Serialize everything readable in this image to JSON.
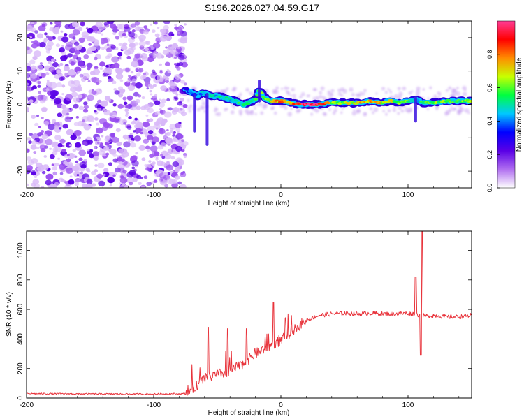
{
  "title": "S196.2026.027.04.59.G17",
  "colors": {
    "snr_line": "#e8333b",
    "frame": "#000000",
    "background": "#ffffff"
  },
  "chart_data": [
    {
      "type": "heatmap",
      "name": "spectrogram",
      "xlabel": "Height of straight line (km)",
      "ylabel": "Frequency (Hz)",
      "xlim": [
        -200,
        150
      ],
      "ylim": [
        -25,
        25
      ],
      "xticks": [
        -200,
        -100,
        0,
        100
      ],
      "xtick_labels": [
        "-200",
        "-100",
        "0",
        "100"
      ],
      "yticks": [
        -20,
        -10,
        0,
        10,
        20
      ],
      "ytick_labels": [
        "-20",
        "-10",
        "0",
        "10",
        "20"
      ],
      "noise_region_x": [
        -200,
        -75
      ],
      "ridge": [
        {
          "x": -75,
          "y": 4.5,
          "a": 0.3
        },
        {
          "x": -70,
          "y": 3.5,
          "a": 0.4
        },
        {
          "x": -66,
          "y": 2.5,
          "a": 0.35
        },
        {
          "x": -62,
          "y": 3.5,
          "a": 0.45
        },
        {
          "x": -58,
          "y": 3.0,
          "a": 0.4
        },
        {
          "x": -54,
          "y": 2.5,
          "a": 0.5
        },
        {
          "x": -50,
          "y": 2.5,
          "a": 0.45
        },
        {
          "x": -45,
          "y": 2.0,
          "a": 0.5
        },
        {
          "x": -40,
          "y": 1.5,
          "a": 0.45
        },
        {
          "x": -35,
          "y": 1.0,
          "a": 0.5
        },
        {
          "x": -30,
          "y": 0.0,
          "a": 0.55
        },
        {
          "x": -25,
          "y": 0.5,
          "a": 0.5
        },
        {
          "x": -20,
          "y": 1.5,
          "a": 0.55
        },
        {
          "x": -17,
          "y": 4.5,
          "a": 0.6
        },
        {
          "x": -13,
          "y": 2.0,
          "a": 0.55
        },
        {
          "x": -8,
          "y": 1.0,
          "a": 0.65
        },
        {
          "x": -3,
          "y": 1.0,
          "a": 0.75
        },
        {
          "x": 2,
          "y": 1.0,
          "a": 0.8
        },
        {
          "x": 8,
          "y": 0.5,
          "a": 0.7
        },
        {
          "x": 15,
          "y": 0.0,
          "a": 0.95
        },
        {
          "x": 22,
          "y": 0.0,
          "a": 1.0
        },
        {
          "x": 30,
          "y": 0.0,
          "a": 0.9
        },
        {
          "x": 38,
          "y": 0.5,
          "a": 0.7
        },
        {
          "x": 46,
          "y": 0.5,
          "a": 0.6
        },
        {
          "x": 54,
          "y": 0.5,
          "a": 0.65
        },
        {
          "x": 62,
          "y": 0.5,
          "a": 0.7
        },
        {
          "x": 70,
          "y": 1.0,
          "a": 0.75
        },
        {
          "x": 78,
          "y": 0.5,
          "a": 0.7
        },
        {
          "x": 86,
          "y": 1.0,
          "a": 0.65
        },
        {
          "x": 94,
          "y": 0.5,
          "a": 0.6
        },
        {
          "x": 100,
          "y": 1.0,
          "a": 0.55
        },
        {
          "x": 106,
          "y": 1.5,
          "a": 0.4
        },
        {
          "x": 112,
          "y": 0.5,
          "a": 0.55
        },
        {
          "x": 120,
          "y": 0.5,
          "a": 0.6
        },
        {
          "x": 128,
          "y": 1.0,
          "a": 0.6
        },
        {
          "x": 136,
          "y": 1.0,
          "a": 0.55
        },
        {
          "x": 143,
          "y": 1.0,
          "a": 0.6
        },
        {
          "x": 150,
          "y": 1.0,
          "a": 0.6
        }
      ],
      "colorbar": {
        "label": "Normalized spectral amplitude",
        "range": [
          0.0,
          1.0
        ],
        "ticks": [
          0.0,
          0.2,
          0.4,
          0.6,
          0.8
        ],
        "tick_labels": [
          "0.0",
          "0.2",
          "0.4",
          "0.6",
          "0.8"
        ],
        "stops": [
          "#ffffff",
          "#b06ef0",
          "#5a00e6",
          "#0000ff",
          "#00c8ff",
          "#00ff40",
          "#c8ff00",
          "#ff8c00",
          "#ff0000",
          "#ff3c96"
        ]
      }
    },
    {
      "type": "line",
      "name": "snr",
      "xlabel": "Height of straight line (km)",
      "ylabel": "SNR (10 * v/v)",
      "xlim": [
        -200,
        150
      ],
      "ylim": [
        0,
        1130
      ],
      "xticks": [
        -200,
        -100,
        0,
        100
      ],
      "xtick_labels": [
        "-200",
        "-100",
        "0",
        "100"
      ],
      "yticks": [
        0,
        200,
        400,
        600,
        800,
        1000
      ],
      "ytick_labels": [
        "0",
        "200",
        "400",
        "600",
        "800",
        "1000"
      ],
      "series": [
        {
          "name": "SNR",
          "x": [
            -200,
            -150,
            -100,
            -75,
            -68,
            -60,
            -50,
            -40,
            -30,
            -20,
            -10,
            0,
            10,
            20,
            30,
            40,
            50,
            60,
            70,
            80,
            90,
            100,
            105,
            110,
            115,
            120,
            130,
            140,
            150
          ],
          "y": [
            30,
            28,
            27,
            30,
            70,
            130,
            160,
            180,
            230,
            300,
            350,
            390,
            460,
            530,
            560,
            570,
            575,
            570,
            575,
            570,
            570,
            575,
            570,
            560,
            555,
            560,
            550,
            550,
            560
          ]
        }
      ],
      "annotations": [
        {
          "x": -57,
          "y": 480,
          "note": "spike"
        },
        {
          "x": -42,
          "y": 470,
          "note": "spike"
        },
        {
          "x": -27,
          "y": 470,
          "note": "spike"
        },
        {
          "x": -6,
          "y": 650,
          "note": "spike"
        },
        {
          "x": 106,
          "y": 820,
          "note": "spike"
        },
        {
          "x": 111,
          "y": 1130,
          "note": "peak"
        },
        {
          "x": 110,
          "y": 290,
          "note": "dip"
        }
      ]
    }
  ]
}
